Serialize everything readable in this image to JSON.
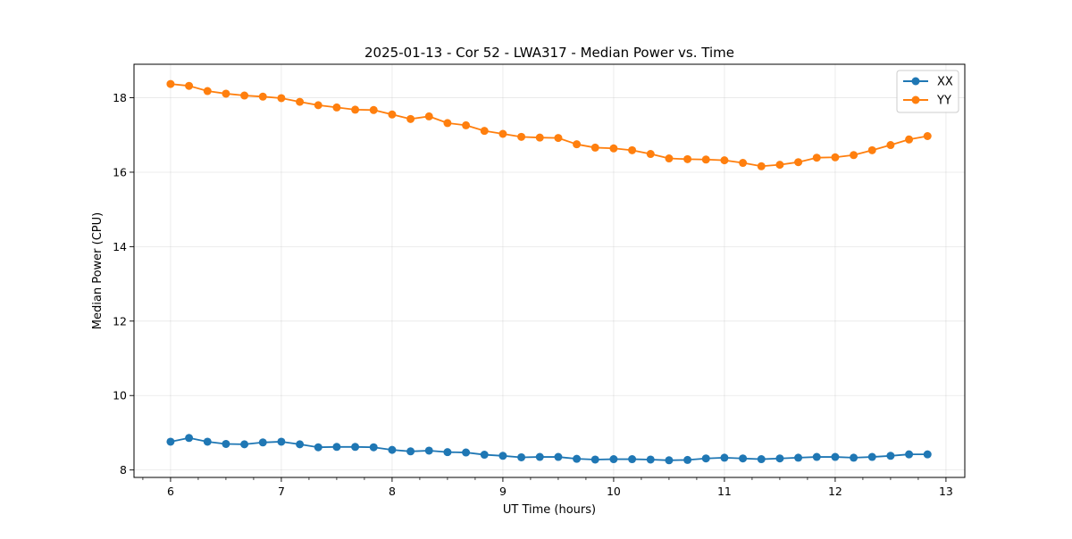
{
  "chart_data": {
    "type": "line",
    "title": "2025-01-13 - Cor 52 - LWA317 - Median Power vs. Time",
    "xlabel": "UT Time (hours)",
    "ylabel": "Median Power (CPU)",
    "xlim": [
      5.67,
      13.17
    ],
    "ylim": [
      7.8,
      18.9
    ],
    "grid": true,
    "legend_location": "top-right",
    "x_ticks": [
      6,
      7,
      8,
      9,
      10,
      11,
      12,
      13
    ],
    "x_tick_labels": [
      "6",
      "7",
      "8",
      "9",
      "10",
      "11",
      "12",
      "13"
    ],
    "x_minor_ticks": [
      5.75,
      6.25,
      6.5,
      6.75,
      7.25,
      7.5,
      7.75,
      8.25,
      8.5,
      8.75,
      9.25,
      9.5,
      9.75,
      10.25,
      10.5,
      10.75,
      11.25,
      11.5,
      11.75,
      12.25,
      12.5,
      12.75,
      13.25
    ],
    "y_ticks": [
      8,
      10,
      12,
      14,
      16,
      18
    ],
    "y_tick_labels": [
      "8",
      "10",
      "12",
      "14",
      "16",
      "18"
    ],
    "x": [
      6.0,
      6.1667,
      6.3333,
      6.5,
      6.6667,
      6.8333,
      7.0,
      7.1667,
      7.3333,
      7.5,
      7.6667,
      7.8333,
      8.0,
      8.1667,
      8.3333,
      8.5,
      8.6667,
      8.8333,
      9.0,
      9.1667,
      9.3333,
      9.5,
      9.6667,
      9.8333,
      10.0,
      10.1667,
      10.3333,
      10.5,
      10.6667,
      10.8333,
      11.0,
      11.1667,
      11.3333,
      11.5,
      11.6667,
      11.8333,
      12.0,
      12.1667,
      12.3333,
      12.5,
      12.6667,
      12.8333
    ],
    "series": [
      {
        "name": "XX",
        "color": "#1f77b4",
        "values": [
          8.76,
          8.86,
          8.76,
          8.7,
          8.69,
          8.74,
          8.76,
          8.69,
          8.61,
          8.62,
          8.62,
          8.61,
          8.54,
          8.5,
          8.52,
          8.48,
          8.47,
          8.41,
          8.38,
          8.34,
          8.35,
          8.35,
          8.3,
          8.28,
          8.29,
          8.29,
          8.28,
          8.26,
          8.27,
          8.31,
          8.33,
          8.31,
          8.29,
          8.31,
          8.33,
          8.35,
          8.35,
          8.33,
          8.35,
          8.38,
          8.42,
          8.42
        ]
      },
      {
        "name": "YY",
        "color": "#ff7f0e",
        "values": [
          18.37,
          18.32,
          18.18,
          18.11,
          18.06,
          18.03,
          17.99,
          17.89,
          17.8,
          17.74,
          17.68,
          17.67,
          17.55,
          17.43,
          17.5,
          17.32,
          17.26,
          17.11,
          17.03,
          16.95,
          16.93,
          16.92,
          16.75,
          16.66,
          16.64,
          16.59,
          16.49,
          16.37,
          16.35,
          16.34,
          16.32,
          16.25,
          16.16,
          16.2,
          16.27,
          16.39,
          16.4,
          16.46,
          16.59,
          16.73,
          16.88,
          16.97
        ]
      }
    ]
  }
}
